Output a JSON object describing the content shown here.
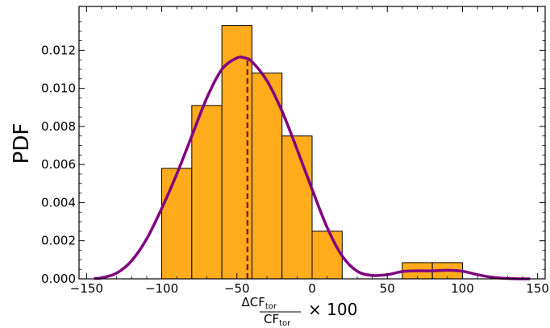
{
  "chart_data": {
    "type": "bar",
    "ylabel": "PDF",
    "xlabel": {
      "numerator": "ΔCF",
      "denominator": "CF",
      "subscript": "tor",
      "suffix": "× 100"
    },
    "xlim": [
      -155,
      155
    ],
    "ylim": [
      0,
      0.0143
    ],
    "x_ticks": [
      -150,
      -100,
      -50,
      0,
      50,
      100,
      150
    ],
    "x_tick_labels": [
      "−150",
      "−100",
      "−50",
      "0",
      "50",
      "100",
      "150"
    ],
    "y_ticks": [
      0,
      0.002,
      0.004,
      0.006,
      0.008,
      0.01,
      0.012
    ],
    "y_tick_labels": [
      "0.000",
      "0.002",
      "0.004",
      "0.006",
      "0.008",
      "0.010",
      "0.012"
    ],
    "histogram": {
      "bin_edges": [
        -100,
        -80,
        -60,
        -40,
        -20,
        0,
        20,
        40,
        60,
        80,
        100
      ],
      "values": [
        0.0058,
        0.0091,
        0.0133,
        0.0108,
        0.0075,
        0.0025,
        0,
        0,
        0.00085,
        0.00085
      ]
    },
    "kde": {
      "x": [
        -145,
        -140,
        -130,
        -120,
        -110,
        -100,
        -90,
        -80,
        -70,
        -60,
        -50,
        -45,
        -40,
        -30,
        -20,
        -10,
        0,
        10,
        20,
        30,
        40,
        50,
        60,
        70,
        80,
        90,
        100,
        110,
        120,
        130,
        140,
        145
      ],
      "y": [
        2e-05,
        5e-05,
        0.0003,
        0.00095,
        0.0021,
        0.0037,
        0.0055,
        0.0075,
        0.0095,
        0.011,
        0.0116,
        0.0116,
        0.0114,
        0.0104,
        0.0088,
        0.0068,
        0.0047,
        0.0027,
        0.0012,
        0.0004,
        0.00018,
        0.00022,
        0.00038,
        0.00042,
        0.00042,
        0.00045,
        0.0004,
        0.00022,
        8e-05,
        2e-05,
        0,
        0
      ]
    },
    "mean_line_x": -43,
    "grid": false,
    "colors": {
      "bar_fill": "#FFAC1C",
      "bar_edge": "#000000",
      "kde_line": "#800080",
      "mean_line": "#8B1A3A",
      "axis": "#000000"
    }
  }
}
